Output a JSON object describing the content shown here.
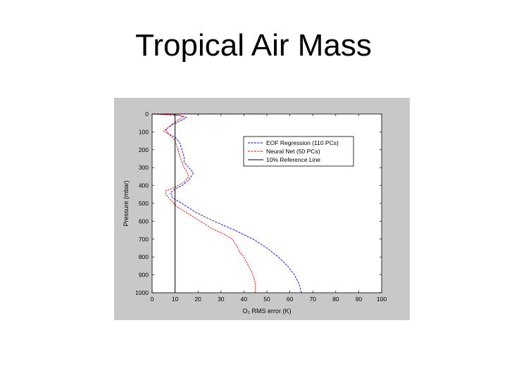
{
  "slide": {
    "title": "Tropical Air Mass"
  },
  "colors": {
    "figure_bg": "#c8c8c8",
    "axes_bg": "#ffffff",
    "eof": "#0000ff",
    "neural": "#ff0000",
    "reference": "#000000"
  },
  "chart_data": {
    "type": "line",
    "title": "",
    "xlabel": "O₂ RMS error (K)",
    "ylabel": "Pressure (mbar)",
    "xlim": [
      0,
      100
    ],
    "ylim": [
      1000,
      0
    ],
    "y_inverted": true,
    "xticks": [
      0,
      10,
      20,
      30,
      40,
      50,
      60,
      70,
      80,
      90,
      100
    ],
    "yticks": [
      0,
      100,
      200,
      300,
      400,
      500,
      600,
      700,
      800,
      900,
      1000
    ],
    "grid": false,
    "legend_position": "upper-right",
    "series": [
      {
        "name": "EOF Regression (110 PCs)",
        "color": "#0000ff",
        "points": [
          [
            65,
            1000
          ],
          [
            64,
            950
          ],
          [
            62,
            900
          ],
          [
            59,
            850
          ],
          [
            55,
            800
          ],
          [
            50,
            750
          ],
          [
            44,
            700
          ],
          [
            36,
            650
          ],
          [
            27,
            600
          ],
          [
            19,
            550
          ],
          [
            13,
            500
          ],
          [
            9,
            470
          ],
          [
            8,
            440
          ],
          [
            10,
            420
          ],
          [
            13,
            400
          ],
          [
            16,
            370
          ],
          [
            18,
            330
          ],
          [
            16,
            300
          ],
          [
            14,
            270
          ],
          [
            14,
            240
          ],
          [
            13,
            200
          ],
          [
            12,
            160
          ],
          [
            10,
            130
          ],
          [
            7,
            110
          ],
          [
            6,
            85
          ],
          [
            9,
            60
          ],
          [
            12,
            40
          ],
          [
            15,
            20
          ],
          [
            12,
            8
          ],
          [
            0,
            0
          ],
          [
            50,
            0
          ]
        ]
      },
      {
        "name": "Neural Net (50 PCs)",
        "color": "#ff0000",
        "points": [
          [
            45,
            1000
          ],
          [
            45,
            950
          ],
          [
            44,
            900
          ],
          [
            42,
            850
          ],
          [
            40,
            800
          ],
          [
            38,
            770
          ],
          [
            37,
            740
          ],
          [
            35,
            700
          ],
          [
            31,
            670
          ],
          [
            26,
            640
          ],
          [
            21,
            600
          ],
          [
            16,
            560
          ],
          [
            11,
            520
          ],
          [
            8,
            480
          ],
          [
            6,
            450
          ],
          [
            6,
            430
          ],
          [
            10,
            410
          ],
          [
            14,
            380
          ],
          [
            16,
            350
          ],
          [
            15,
            320
          ],
          [
            14,
            300
          ],
          [
            13,
            270
          ],
          [
            12,
            230
          ],
          [
            11,
            190
          ],
          [
            10,
            150
          ],
          [
            8,
            120
          ],
          [
            5,
            95
          ],
          [
            8,
            65
          ],
          [
            11,
            35
          ],
          [
            14,
            15
          ],
          [
            11,
            5
          ],
          [
            0,
            0
          ],
          [
            30,
            0
          ]
        ]
      },
      {
        "name": "10% Reference Line",
        "color": "#000000",
        "points": [
          [
            10,
            1000
          ],
          [
            10,
            0
          ]
        ]
      }
    ]
  }
}
